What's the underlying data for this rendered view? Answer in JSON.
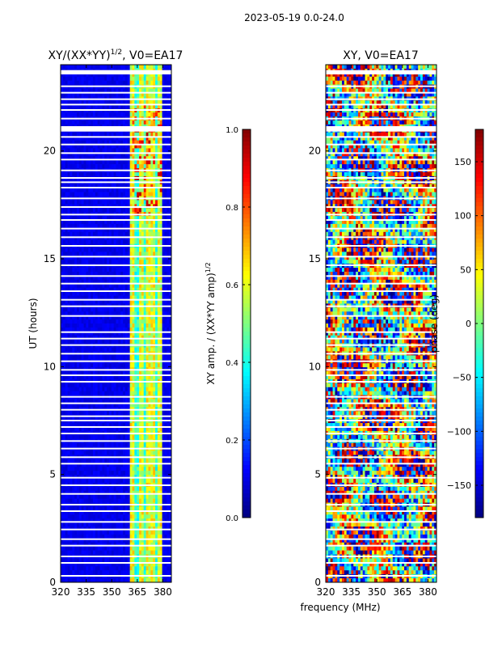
{
  "suptitle": "2023-05-19 0.0-24.0",
  "shared_xlabel": "frequency (MHz)",
  "chart_data": [
    {
      "type": "heatmap",
      "title_main": "XY/(XX*YY)",
      "title_exp": "1/2",
      "title_suffix": ", V0=EA17",
      "xlabel": "",
      "ylabel": "UT (hours)",
      "xlim": [
        320,
        385
      ],
      "ylim": [
        0,
        24
      ],
      "xticks": [
        320,
        335,
        350,
        365,
        380
      ],
      "yticks": [
        0,
        5,
        10,
        15,
        20
      ],
      "colormap": "jet",
      "colorbar": {
        "label_main": "XY amp. / (XX*YY amp)",
        "label_exp": "1/2",
        "range": [
          0.0,
          1.0
        ],
        "ticks": [
          "0.0",
          "0.2",
          "0.4",
          "0.6",
          "0.8",
          "1.0"
        ],
        "tick_values": [
          0.0,
          0.2,
          0.4,
          0.6,
          0.8,
          1.0
        ]
      },
      "active_band_mhz": [
        361,
        380
      ],
      "band_stripes_mhz": [
        362.5,
        367,
        371,
        374.5,
        378.5
      ],
      "background_level": 0.08
    },
    {
      "type": "heatmap",
      "title_main": "XY, V0=EA17",
      "xlabel": "frequency (MHz)",
      "ylabel": "",
      "xlim": [
        320,
        385
      ],
      "ylim": [
        0,
        24
      ],
      "xticks": [
        320,
        335,
        350,
        365,
        380
      ],
      "yticks": [
        0,
        5,
        10,
        15,
        20
      ],
      "colormap": "jet",
      "colorbar": {
        "label_main": "phase (deg)",
        "range": [
          -180,
          180
        ],
        "ticks": [
          "−150",
          "−100",
          "−50",
          "0",
          "50",
          "100",
          "150"
        ],
        "tick_values": [
          -150,
          -100,
          -50,
          0,
          50,
          100,
          150
        ]
      }
    }
  ],
  "flagged_ut_hours": [
    0.3,
    0.9,
    1.2,
    1.7,
    2.0,
    2.45,
    2.8,
    3.3,
    3.6,
    4.1,
    4.5,
    4.85,
    5.5,
    5.8,
    6.2,
    6.55,
    6.9,
    7.2,
    7.5,
    7.7,
    8.0,
    8.3,
    8.6,
    9.3,
    9.6,
    9.85,
    10.25,
    10.6,
    11.0,
    11.3,
    11.6,
    12.35,
    12.8,
    13.1,
    13.5,
    13.85,
    14.2,
    14.7,
    15.1,
    15.6,
    16.0,
    16.4,
    16.8,
    17.05,
    17.4,
    17.8,
    18.3,
    18.55,
    18.75,
    19.1,
    19.6,
    19.9,
    20.3,
    20.65,
    21.5,
    21.9,
    22.15,
    22.4,
    22.7,
    23.0
  ],
  "flagged_ut_bands": [
    [
      20.9,
      21.15
    ],
    [
      23.55,
      23.75
    ]
  ]
}
